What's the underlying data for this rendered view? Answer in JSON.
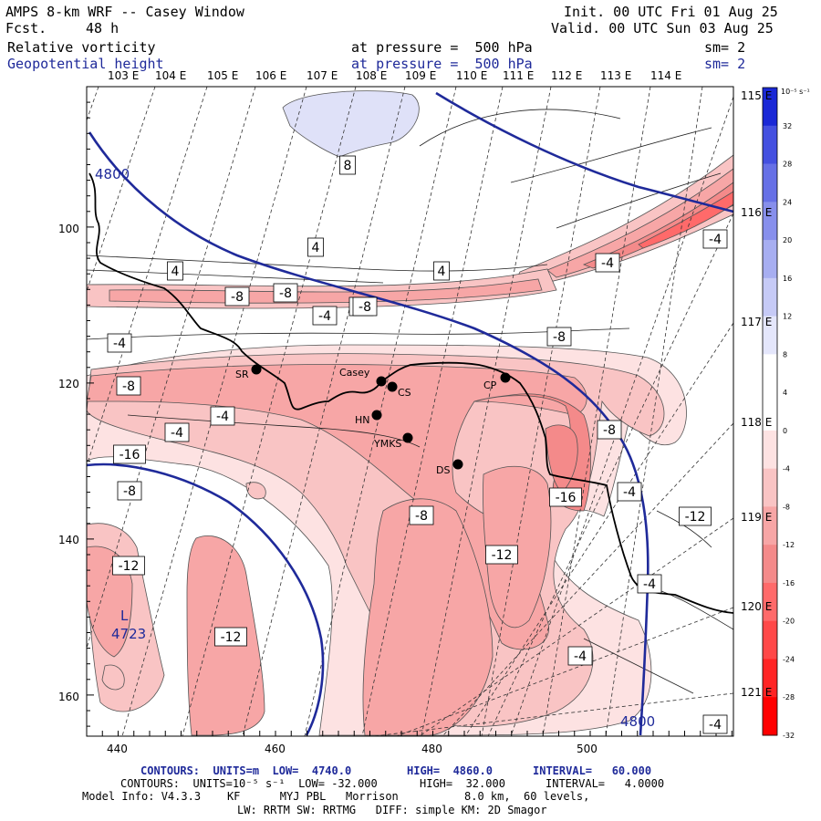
{
  "header": {
    "model_title": "AMPS 8-km WRF -- Casey Window",
    "fcst_label": "Fcst.",
    "fcst_value": "48 h",
    "init_text": "Init. 00 UTC Fri 01 Aug 25",
    "valid_text": "Valid. 00 UTC Sun 03 Aug 25",
    "field1_name": "Relative vorticity",
    "field1_pressure": "at pressure =  500 hPa",
    "field1_sm": "sm= 2",
    "field2_name": "Geopotential height",
    "field2_pressure": "at pressure =  500 hPa",
    "field2_sm": "sm= 2"
  },
  "axes": {
    "top_lon_labels": [
      "103 E",
      "104 E",
      "105 E",
      "106 E",
      "107 E",
      "108 E",
      "109 E",
      "110 E",
      "111 E",
      "112 E",
      "113 E",
      "114 E"
    ],
    "right_lon_labels": [
      "115 E",
      "116 E",
      "117 E",
      "118 E",
      "119 E",
      "120 E",
      "121 E"
    ],
    "left_y_labels": [
      "100",
      "120",
      "140",
      "160"
    ],
    "bottom_x_labels": [
      "440",
      "460",
      "480",
      "500"
    ]
  },
  "colorbar": {
    "units": "10⁻⁵ s⁻¹",
    "levels": [
      -32,
      -28,
      -24,
      -20,
      -16,
      -12,
      -8,
      -4,
      0,
      4,
      8,
      12,
      16,
      20,
      24,
      28,
      32
    ],
    "colors": [
      "#ff0000",
      "#ff2424",
      "#ff4848",
      "#ff6a6a",
      "#f48a8a",
      "#f7a6a6",
      "#f9c4c4",
      "#fde2e2",
      "#ffffff",
      "#ffffff",
      "#e4e6fb",
      "#c6caf6",
      "#a7aef1",
      "#878fec",
      "#6670e6",
      "#4450e0",
      "#1a28d6"
    ],
    "labels": [
      "32",
      "28",
      "24",
      "20",
      "16",
      "12",
      "8",
      "4",
      "0",
      "-4",
      "-8",
      "-12",
      "-16",
      "-20",
      "-24",
      "-28",
      "-32"
    ]
  },
  "map": {
    "height_contour_labels": [
      "4800",
      "4800"
    ],
    "low_label": "L",
    "low_value": "4723",
    "vorticity_labels": [
      "8",
      "4",
      "4",
      "4",
      "-4",
      "-8",
      "-8",
      "-4",
      "-4",
      "-4",
      "-8",
      "-8",
      "-16",
      "-4",
      "-8",
      "-4",
      "-8",
      "-8",
      "-12",
      "-16",
      "-12",
      "-8",
      "-4",
      "-12",
      "-12",
      "-4",
      "-4",
      "-4",
      "-8"
    ],
    "stations": [
      {
        "name": "SR"
      },
      {
        "name": "Casey"
      },
      {
        "name": "CS"
      },
      {
        "name": "HN"
      },
      {
        "name": "YMKS"
      },
      {
        "name": "CP"
      },
      {
        "name": "DS"
      }
    ]
  },
  "footer": {
    "contours1_label": "CONTOURS:  UNITS=m  LOW=  4740.0",
    "contours1_high": "HIGH=  4860.0",
    "contours1_interval": "INTERVAL=   60.000",
    "contours2_label": "CONTOURS:  UNITS=10⁻⁵ s⁻¹  LOW= -32.000",
    "contours2_high": "HIGH=  32.000",
    "contours2_interval": "INTERVAL=   4.0000",
    "model_info": "Model Info: V4.3.3    KF      MYJ PBL   Morrison          8.0 km,  60 levels,",
    "model_info2": "LW: RRTM SW: RRTMG   DIFF: simple KM: 2D Smagor"
  }
}
